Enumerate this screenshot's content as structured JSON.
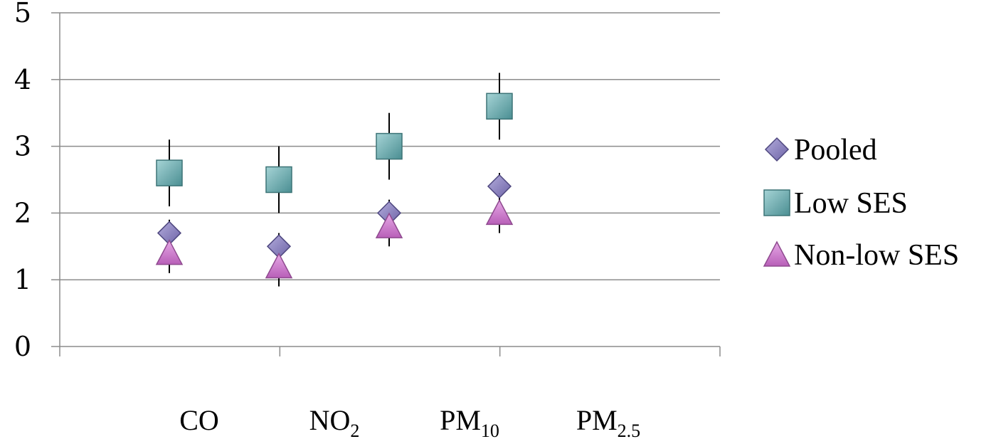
{
  "chart_data": {
    "type": "scatter",
    "title": "",
    "xlabel": "",
    "ylabel": "",
    "ylim": [
      0,
      5
    ],
    "yticks": [
      0,
      1,
      2,
      3,
      4,
      5
    ],
    "grid": true,
    "legend_position": "right",
    "categories": [
      {
        "base": "CO",
        "sub": ""
      },
      {
        "base": "NO",
        "sub": "2"
      },
      {
        "base": "PM",
        "sub": "10"
      },
      {
        "base": "PM",
        "sub": "2.5"
      }
    ],
    "series": [
      {
        "name": "Pooled",
        "marker": "diamond",
        "color": "#8077b5",
        "values": [
          1.7,
          1.5,
          2.0,
          2.4
        ],
        "err_low": [
          1.5,
          1.3,
          1.8,
          2.2
        ],
        "err_high": [
          1.9,
          1.7,
          2.2,
          2.6
        ]
      },
      {
        "name": "Low SES",
        "marker": "square",
        "color": "#5fa3a7",
        "values": [
          2.6,
          2.5,
          3.0,
          3.6
        ],
        "err_low": [
          2.1,
          2.0,
          2.5,
          3.1
        ],
        "err_high": [
          3.1,
          3.0,
          3.5,
          4.1
        ]
      },
      {
        "name": "Non-low SES",
        "marker": "triangle",
        "color": "#c979c9",
        "values": [
          1.4,
          1.2,
          1.8,
          2.0
        ],
        "err_low": [
          1.1,
          0.9,
          1.5,
          1.7
        ],
        "err_high": [
          1.7,
          1.5,
          2.1,
          2.3
        ]
      }
    ]
  }
}
